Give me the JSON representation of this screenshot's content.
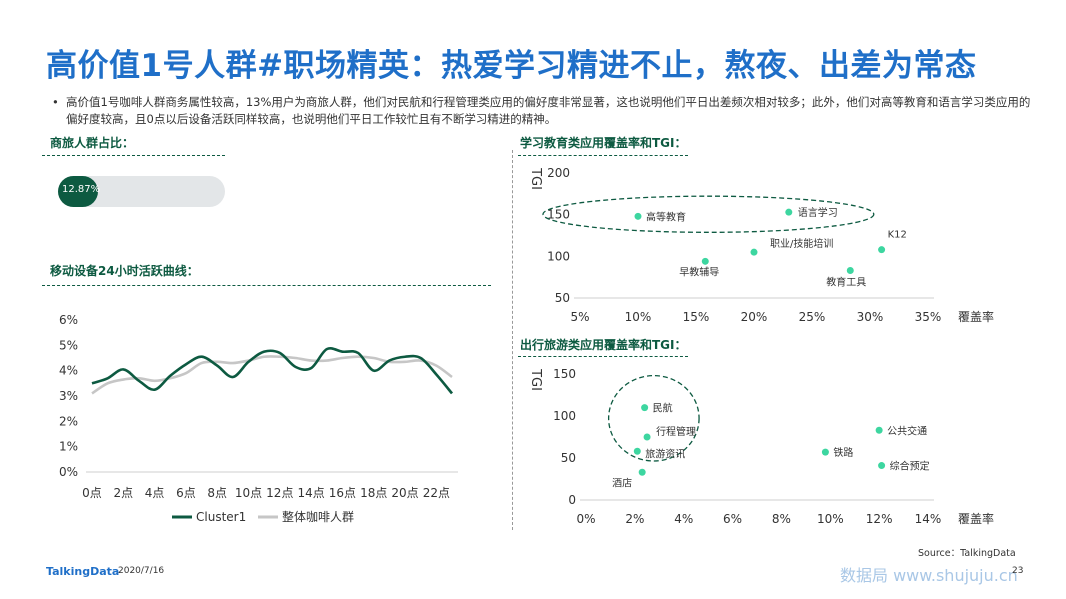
{
  "header": {
    "title": "高价值1号人群#职场精英：热爱学习精进不止，熬夜、出差为常态",
    "bullet": "高价值1号咖啡人群商务属性较高，13%用户为商旅人群，他们对民航和行程管理类应用的偏好度非常显著，这也说明他们平日出差频次相对较多；此外，他们对高等教育和语言学习类应用的偏好度较高，且0点以后设备活跃同样较高，也说明他们平日工作较忙且有不断学习精进的精神。"
  },
  "sections": {
    "business_ratio": "商旅人群占比：",
    "activity_curve": "移动设备24小时活跃曲线：",
    "education": "学习教育类应用覆盖率和TGI：",
    "travel": "出行旅游类应用覆盖率和TGI："
  },
  "colors": {
    "brand_blue": "#1f6fc8",
    "dark_green": "#0d5a41",
    "gray": "#c6c6c6",
    "mint": "#3dd6a0"
  },
  "chart_data": [
    {
      "type": "bar",
      "title": "商旅人群占比",
      "values": [
        12.87
      ],
      "value_label": "12.87%",
      "ylim": [
        0,
        100
      ]
    },
    {
      "type": "line",
      "title": "移动设备24小时活跃曲线",
      "x": [
        "0点",
        "1点",
        "2点",
        "3点",
        "4点",
        "5点",
        "6点",
        "7点",
        "8点",
        "9点",
        "10点",
        "11点",
        "12点",
        "13点",
        "14点",
        "15点",
        "16点",
        "17点",
        "18点",
        "19点",
        "20点",
        "21点",
        "22点",
        "23点"
      ],
      "x_tick_labels": [
        "0点",
        "2点",
        "4点",
        "6点",
        "8点",
        "10点",
        "12点",
        "14点",
        "16点",
        "18点",
        "20点",
        "22点"
      ],
      "y_tick_labels": [
        "0%",
        "1%",
        "2%",
        "3%",
        "4%",
        "5%",
        "6%"
      ],
      "ylim": [
        0,
        6
      ],
      "legend_position": "bottom",
      "series": [
        {
          "name": "Cluster1",
          "color": "#0d5a41",
          "values": [
            3.5,
            3.7,
            4.05,
            3.6,
            3.25,
            3.8,
            4.25,
            4.55,
            4.2,
            3.75,
            4.35,
            4.75,
            4.7,
            4.15,
            4.1,
            4.85,
            4.75,
            4.7,
            4.0,
            4.4,
            4.55,
            4.5,
            3.85,
            3.1
          ]
        },
        {
          "name": "整体咖啡人群",
          "color": "#c6c6c6",
          "values": [
            3.1,
            3.5,
            3.65,
            3.7,
            3.6,
            3.7,
            3.9,
            4.3,
            4.35,
            4.3,
            4.4,
            4.55,
            4.55,
            4.5,
            4.4,
            4.4,
            4.5,
            4.55,
            4.5,
            4.35,
            4.35,
            4.4,
            4.2,
            3.75
          ]
        }
      ]
    },
    {
      "type": "scatter",
      "title": "学习教育类应用覆盖率和TGI",
      "xlabel": "覆盖率",
      "ylabel": "TGI",
      "xlim": [
        5,
        35
      ],
      "ylim": [
        50,
        200
      ],
      "x_tick_labels": [
        "5%",
        "10%",
        "15%",
        "20%",
        "25%",
        "30%",
        "35%"
      ],
      "y_tick_labels": [
        "50",
        "100",
        "150",
        "200"
      ],
      "points": [
        {
          "label": "高等教育",
          "x": 10.0,
          "y": 148
        },
        {
          "label": "语言学习",
          "x": 23.0,
          "y": 153
        },
        {
          "label": "K12",
          "x": 31.0,
          "y": 108
        },
        {
          "label": "职业/技能培训",
          "x": 20.0,
          "y": 105
        },
        {
          "label": "早教辅导",
          "x": 15.8,
          "y": 94
        },
        {
          "label": "教育工具",
          "x": 28.3,
          "y": 83
        }
      ],
      "highlight": [
        "高等教育",
        "语言学习"
      ]
    },
    {
      "type": "scatter",
      "title": "出行旅游类应用覆盖率和TGI",
      "xlabel": "覆盖率",
      "ylabel": "TGI",
      "xlim": [
        0,
        14
      ],
      "ylim": [
        0,
        150
      ],
      "x_tick_labels": [
        "0%",
        "2%",
        "4%",
        "6%",
        "8%",
        "10%",
        "12%",
        "14%"
      ],
      "y_tick_labels": [
        "0",
        "50",
        "100",
        "150"
      ],
      "points": [
        {
          "label": "民航",
          "x": 2.4,
          "y": 110
        },
        {
          "label": "行程管理",
          "x": 2.5,
          "y": 75
        },
        {
          "label": "旅游资讯",
          "x": 2.1,
          "y": 58
        },
        {
          "label": "酒店",
          "x": 2.3,
          "y": 33
        },
        {
          "label": "公共交通",
          "x": 12.0,
          "y": 83
        },
        {
          "label": "铁路",
          "x": 9.8,
          "y": 57
        },
        {
          "label": "综合预定",
          "x": 12.1,
          "y": 41
        }
      ],
      "highlight": [
        "民航",
        "行程管理"
      ]
    }
  ],
  "footer": {
    "logo": "TalkingData",
    "date": "2020/7/16",
    "source": "Source：TalkingData",
    "watermark": "数据局 www.shujuju.cn",
    "page": "23"
  }
}
